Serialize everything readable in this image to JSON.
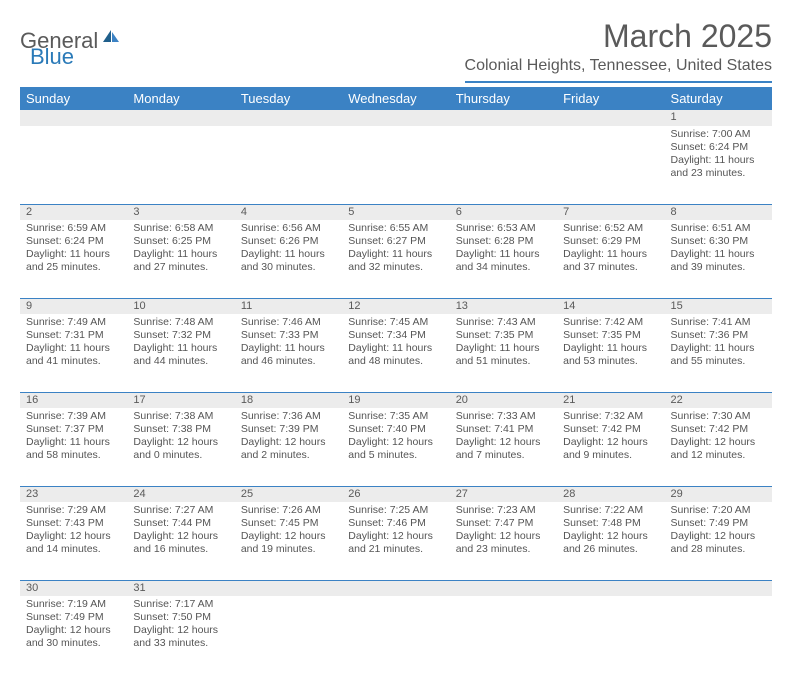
{
  "logo": {
    "text1": "General",
    "text2": "Blue"
  },
  "title": "March 2025",
  "location": "Colonial Heights, Tennessee, United States",
  "day_headers": [
    "Sunday",
    "Monday",
    "Tuesday",
    "Wednesday",
    "Thursday",
    "Friday",
    "Saturday"
  ],
  "colors": {
    "header_bg": "#3b82c4",
    "header_text": "#ffffff",
    "daynum_bg": "#ececec",
    "border": "#3b82c4",
    "text": "#555555"
  },
  "weeks": [
    [
      null,
      null,
      null,
      null,
      null,
      null,
      {
        "n": "1",
        "sr": "Sunrise: 7:00 AM",
        "ss": "Sunset: 6:24 PM",
        "d1": "Daylight: 11 hours",
        "d2": "and 23 minutes."
      }
    ],
    [
      {
        "n": "2",
        "sr": "Sunrise: 6:59 AM",
        "ss": "Sunset: 6:24 PM",
        "d1": "Daylight: 11 hours",
        "d2": "and 25 minutes."
      },
      {
        "n": "3",
        "sr": "Sunrise: 6:58 AM",
        "ss": "Sunset: 6:25 PM",
        "d1": "Daylight: 11 hours",
        "d2": "and 27 minutes."
      },
      {
        "n": "4",
        "sr": "Sunrise: 6:56 AM",
        "ss": "Sunset: 6:26 PM",
        "d1": "Daylight: 11 hours",
        "d2": "and 30 minutes."
      },
      {
        "n": "5",
        "sr": "Sunrise: 6:55 AM",
        "ss": "Sunset: 6:27 PM",
        "d1": "Daylight: 11 hours",
        "d2": "and 32 minutes."
      },
      {
        "n": "6",
        "sr": "Sunrise: 6:53 AM",
        "ss": "Sunset: 6:28 PM",
        "d1": "Daylight: 11 hours",
        "d2": "and 34 minutes."
      },
      {
        "n": "7",
        "sr": "Sunrise: 6:52 AM",
        "ss": "Sunset: 6:29 PM",
        "d1": "Daylight: 11 hours",
        "d2": "and 37 minutes."
      },
      {
        "n": "8",
        "sr": "Sunrise: 6:51 AM",
        "ss": "Sunset: 6:30 PM",
        "d1": "Daylight: 11 hours",
        "d2": "and 39 minutes."
      }
    ],
    [
      {
        "n": "9",
        "sr": "Sunrise: 7:49 AM",
        "ss": "Sunset: 7:31 PM",
        "d1": "Daylight: 11 hours",
        "d2": "and 41 minutes."
      },
      {
        "n": "10",
        "sr": "Sunrise: 7:48 AM",
        "ss": "Sunset: 7:32 PM",
        "d1": "Daylight: 11 hours",
        "d2": "and 44 minutes."
      },
      {
        "n": "11",
        "sr": "Sunrise: 7:46 AM",
        "ss": "Sunset: 7:33 PM",
        "d1": "Daylight: 11 hours",
        "d2": "and 46 minutes."
      },
      {
        "n": "12",
        "sr": "Sunrise: 7:45 AM",
        "ss": "Sunset: 7:34 PM",
        "d1": "Daylight: 11 hours",
        "d2": "and 48 minutes."
      },
      {
        "n": "13",
        "sr": "Sunrise: 7:43 AM",
        "ss": "Sunset: 7:35 PM",
        "d1": "Daylight: 11 hours",
        "d2": "and 51 minutes."
      },
      {
        "n": "14",
        "sr": "Sunrise: 7:42 AM",
        "ss": "Sunset: 7:35 PM",
        "d1": "Daylight: 11 hours",
        "d2": "and 53 minutes."
      },
      {
        "n": "15",
        "sr": "Sunrise: 7:41 AM",
        "ss": "Sunset: 7:36 PM",
        "d1": "Daylight: 11 hours",
        "d2": "and 55 minutes."
      }
    ],
    [
      {
        "n": "16",
        "sr": "Sunrise: 7:39 AM",
        "ss": "Sunset: 7:37 PM",
        "d1": "Daylight: 11 hours",
        "d2": "and 58 minutes."
      },
      {
        "n": "17",
        "sr": "Sunrise: 7:38 AM",
        "ss": "Sunset: 7:38 PM",
        "d1": "Daylight: 12 hours",
        "d2": "and 0 minutes."
      },
      {
        "n": "18",
        "sr": "Sunrise: 7:36 AM",
        "ss": "Sunset: 7:39 PM",
        "d1": "Daylight: 12 hours",
        "d2": "and 2 minutes."
      },
      {
        "n": "19",
        "sr": "Sunrise: 7:35 AM",
        "ss": "Sunset: 7:40 PM",
        "d1": "Daylight: 12 hours",
        "d2": "and 5 minutes."
      },
      {
        "n": "20",
        "sr": "Sunrise: 7:33 AM",
        "ss": "Sunset: 7:41 PM",
        "d1": "Daylight: 12 hours",
        "d2": "and 7 minutes."
      },
      {
        "n": "21",
        "sr": "Sunrise: 7:32 AM",
        "ss": "Sunset: 7:42 PM",
        "d1": "Daylight: 12 hours",
        "d2": "and 9 minutes."
      },
      {
        "n": "22",
        "sr": "Sunrise: 7:30 AM",
        "ss": "Sunset: 7:42 PM",
        "d1": "Daylight: 12 hours",
        "d2": "and 12 minutes."
      }
    ],
    [
      {
        "n": "23",
        "sr": "Sunrise: 7:29 AM",
        "ss": "Sunset: 7:43 PM",
        "d1": "Daylight: 12 hours",
        "d2": "and 14 minutes."
      },
      {
        "n": "24",
        "sr": "Sunrise: 7:27 AM",
        "ss": "Sunset: 7:44 PM",
        "d1": "Daylight: 12 hours",
        "d2": "and 16 minutes."
      },
      {
        "n": "25",
        "sr": "Sunrise: 7:26 AM",
        "ss": "Sunset: 7:45 PM",
        "d1": "Daylight: 12 hours",
        "d2": "and 19 minutes."
      },
      {
        "n": "26",
        "sr": "Sunrise: 7:25 AM",
        "ss": "Sunset: 7:46 PM",
        "d1": "Daylight: 12 hours",
        "d2": "and 21 minutes."
      },
      {
        "n": "27",
        "sr": "Sunrise: 7:23 AM",
        "ss": "Sunset: 7:47 PM",
        "d1": "Daylight: 12 hours",
        "d2": "and 23 minutes."
      },
      {
        "n": "28",
        "sr": "Sunrise: 7:22 AM",
        "ss": "Sunset: 7:48 PM",
        "d1": "Daylight: 12 hours",
        "d2": "and 26 minutes."
      },
      {
        "n": "29",
        "sr": "Sunrise: 7:20 AM",
        "ss": "Sunset: 7:49 PM",
        "d1": "Daylight: 12 hours",
        "d2": "and 28 minutes."
      }
    ],
    [
      {
        "n": "30",
        "sr": "Sunrise: 7:19 AM",
        "ss": "Sunset: 7:49 PM",
        "d1": "Daylight: 12 hours",
        "d2": "and 30 minutes."
      },
      {
        "n": "31",
        "sr": "Sunrise: 7:17 AM",
        "ss": "Sunset: 7:50 PM",
        "d1": "Daylight: 12 hours",
        "d2": "and 33 minutes."
      },
      null,
      null,
      null,
      null,
      null
    ]
  ]
}
